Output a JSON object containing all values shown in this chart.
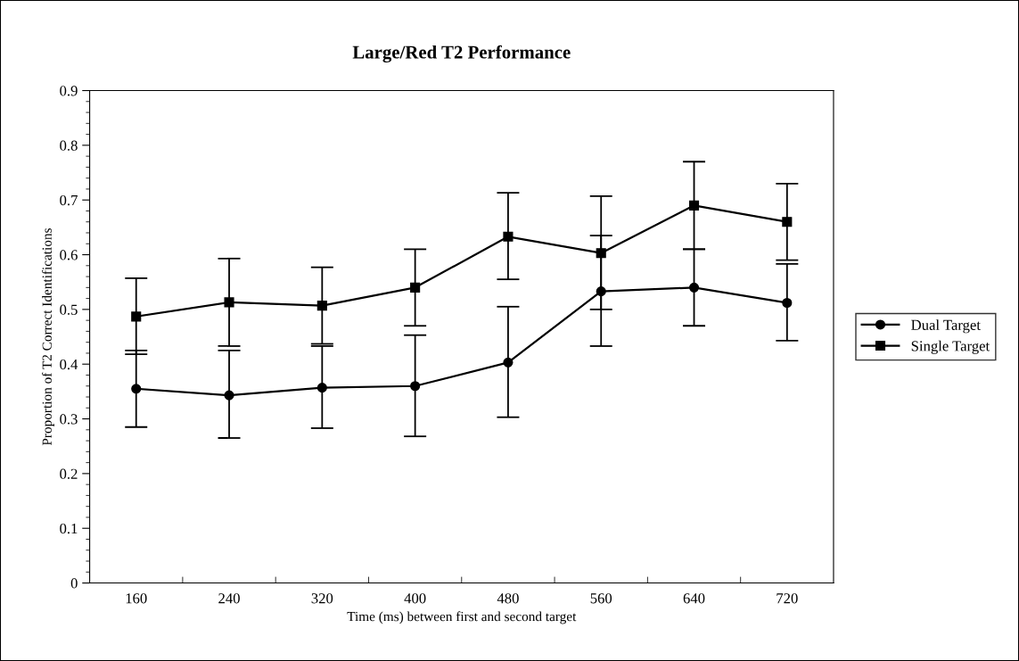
{
  "chart_data": {
    "type": "line",
    "title": "Large/Red T2 Performance",
    "xlabel": "Time (ms) between first and second target",
    "ylabel": "Proportion of T2 Correct Identifications",
    "categories": [
      "160",
      "240",
      "320",
      "400",
      "480",
      "560",
      "640",
      "720"
    ],
    "series": [
      {
        "name": "Dual Target",
        "color": "#000000",
        "marker": "circle",
        "values": [
          0.355,
          0.343,
          0.357,
          0.36,
          0.403,
          0.533,
          0.54,
          0.512
        ],
        "errors": [
          [
            0.285,
            0.425
          ],
          [
            0.265,
            0.425
          ],
          [
            0.283,
            0.433
          ],
          [
            0.268,
            0.453
          ],
          [
            0.303,
            0.505
          ],
          [
            0.433,
            0.635
          ],
          [
            0.47,
            0.61
          ],
          [
            0.443,
            0.583
          ]
        ]
      },
      {
        "name": "Single Target",
        "color": "#000000",
        "marker": "square",
        "values": [
          0.487,
          0.513,
          0.507,
          0.54,
          0.633,
          0.603,
          0.69,
          0.66
        ],
        "errors": [
          [
            0.418,
            0.557
          ],
          [
            0.433,
            0.593
          ],
          [
            0.437,
            0.577
          ],
          [
            0.47,
            0.61
          ],
          [
            0.555,
            0.713
          ],
          [
            0.5,
            0.707
          ],
          [
            0.61,
            0.77
          ],
          [
            0.59,
            0.73
          ]
        ]
      }
    ],
    "ylim": [
      0,
      0.9
    ],
    "yticks": [
      0,
      0.1,
      0.2,
      0.3,
      0.4,
      0.5,
      0.6,
      0.7,
      0.8,
      0.9
    ],
    "grid": false,
    "legend": "right",
    "line_style": "solid"
  }
}
